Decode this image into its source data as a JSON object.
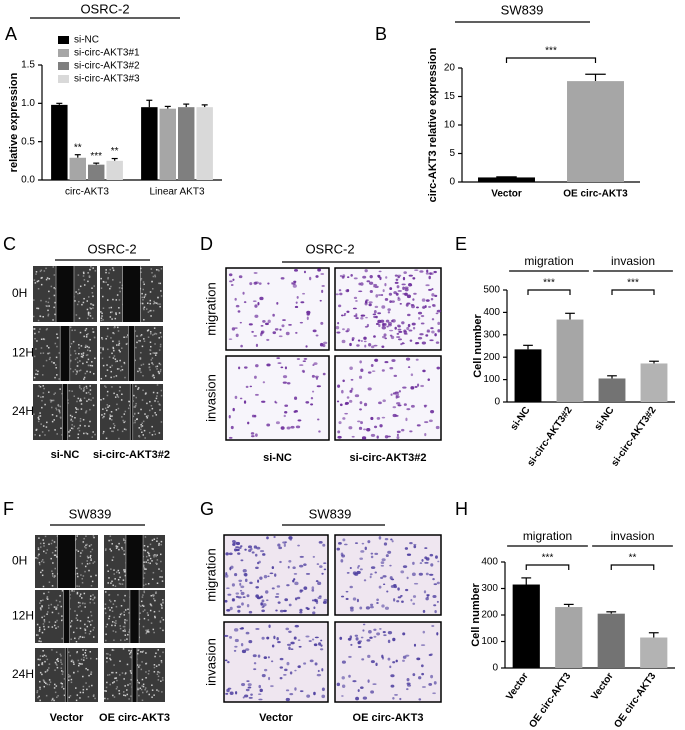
{
  "chart_data": [
    {
      "type": "bar",
      "panel_label": "A",
      "title": "OSRC-2",
      "y_label": "relative expression",
      "categories": [
        "circ-AKT3",
        "Linear AKT3"
      ],
      "series": [
        {
          "name": "si-NC",
          "color": "#000000",
          "values": [
            0.98,
            0.95
          ],
          "errors": [
            0.02,
            0.09
          ]
        },
        {
          "name": "si-circ-AKT3#1",
          "color": "#a6a6a6",
          "values": [
            0.29,
            0.93
          ],
          "errors": [
            0.04,
            0.03
          ],
          "significance": [
            "**",
            null
          ]
        },
        {
          "name": "si-circ-AKT3#2",
          "color": "#7f7f7f",
          "values": [
            0.2,
            0.95
          ],
          "errors": [
            0.02,
            0.04
          ],
          "significance": [
            "***",
            null
          ]
        },
        {
          "name": "si-circ-AKT3#3",
          "color": "#d9d9d9",
          "values": [
            0.25,
            0.95
          ],
          "errors": [
            0.03,
            0.03
          ],
          "significance": [
            "**",
            null
          ]
        }
      ],
      "ylim": [
        0,
        1.5
      ],
      "yticks": [
        {
          "value": 0,
          "label": "0.0"
        },
        0.5,
        {
          "value": 1,
          "label": "1.0"
        },
        1.5
      ]
    },
    {
      "type": "bar",
      "panel_label": "B",
      "title": "SW839",
      "y_label": "circ-AKT3 relative expression",
      "categories": [
        "Vector",
        "OE circ-AKT3"
      ],
      "values": [
        0.8,
        17.7
      ],
      "errors": [
        0.1,
        1.2
      ],
      "colors": [
        "#000000",
        "#a6a6a6"
      ],
      "significance": "***",
      "ylim": [
        0,
        20
      ],
      "yticks": [
        0,
        5,
        10,
        15,
        20
      ]
    },
    {
      "type": "bar",
      "panel_label": "E",
      "y_label": "Cell number",
      "categories": [
        "si-NC",
        "si-circ-AKT3#2",
        "si-NC",
        "si-circ-AKT3#2"
      ],
      "values": [
        235,
        368,
        105,
        172
      ],
      "errors": [
        18,
        28,
        12,
        10
      ],
      "colors": [
        "#000000",
        "#a6a6a6",
        "#737373",
        "#b3b3b3"
      ],
      "groups": [
        {
          "label": "migration",
          "significance": "***"
        },
        {
          "label": "invasion",
          "significance": "***"
        }
      ],
      "ylim": [
        0,
        500
      ],
      "yticks": [
        0,
        100,
        200,
        300,
        400,
        500
      ]
    },
    {
      "type": "bar",
      "panel_label": "H",
      "y_label": "Cell number",
      "categories": [
        "Vector",
        "OE circ-AKT3",
        "Vector",
        "OE circ-AKT3"
      ],
      "values": [
        315,
        230,
        205,
        115
      ],
      "errors": [
        25,
        10,
        7,
        18
      ],
      "colors": [
        "#000000",
        "#a6a6a6",
        "#737373",
        "#b3b3b3"
      ],
      "groups": [
        {
          "label": "migration",
          "significance": "***"
        },
        {
          "label": "invasion",
          "significance": "**"
        }
      ],
      "ylim": [
        0,
        400
      ],
      "yticks": [
        0,
        100,
        200,
        300,
        400
      ]
    }
  ],
  "image_panels": [
    {
      "panel_label": "C",
      "title": "OSRC-2",
      "row_labels": [
        "0H",
        "12H",
        "24H"
      ],
      "column_labels": [
        "si-NC",
        "si-circ-AKT3#2"
      ]
    },
    {
      "panel_label": "D",
      "title": "OSRC-2",
      "row_labels": [
        "migration",
        "invasion"
      ],
      "column_labels": [
        "si-NC",
        "si-circ-AKT3#2"
      ]
    },
    {
      "panel_label": "F",
      "title": "SW839",
      "row_labels": [
        "0H",
        "12H",
        "24H"
      ],
      "column_labels": [
        "Vector",
        "OE circ-AKT3"
      ]
    },
    {
      "panel_label": "G",
      "title": "SW839",
      "row_labels": [
        "migration",
        "invasion"
      ],
      "column_labels": [
        "Vector",
        "OE circ-AKT3"
      ]
    }
  ]
}
